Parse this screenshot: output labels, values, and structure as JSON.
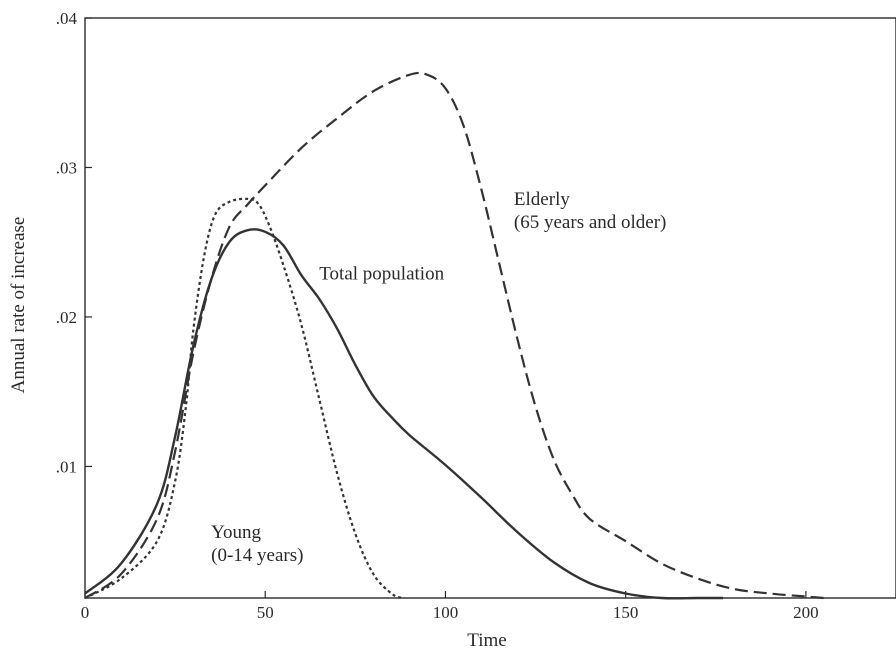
{
  "chart_data": {
    "type": "line",
    "title": "",
    "xlabel": "Time",
    "ylabel": "Annual rate of increase",
    "xlim": [
      0,
      225
    ],
    "ylim": [
      0.0012,
      0.04
    ],
    "x_ticks": [
      {
        "value": 0,
        "label": "0"
      },
      {
        "value": 50,
        "label": "50"
      },
      {
        "value": 100,
        "label": "100"
      },
      {
        "value": 150,
        "label": "150"
      },
      {
        "value": 200,
        "label": "200"
      }
    ],
    "y_ticks": [
      {
        "value": 0.01,
        "label": ".01"
      },
      {
        "value": 0.02,
        "label": ".02"
      },
      {
        "value": 0.03,
        "label": ".03"
      },
      {
        "value": 0.04,
        "label": ".04"
      }
    ],
    "grid": false,
    "legend": "none",
    "series": [
      {
        "key": "total",
        "line_style": "solid",
        "color": "#333333",
        "points": [
          [
            0,
            0.0015
          ],
          [
            10,
            0.0035
          ],
          [
            20,
            0.0075
          ],
          [
            25,
            0.012
          ],
          [
            30,
            0.018
          ],
          [
            35,
            0.0225
          ],
          [
            40,
            0.025
          ],
          [
            45,
            0.0258
          ],
          [
            50,
            0.0257
          ],
          [
            55,
            0.0248
          ],
          [
            60,
            0.0228
          ],
          [
            65,
            0.0212
          ],
          [
            70,
            0.0192
          ],
          [
            75,
            0.0168
          ],
          [
            80,
            0.0147
          ],
          [
            85,
            0.0133
          ],
          [
            90,
            0.0121
          ],
          [
            100,
            0.0101
          ],
          [
            110,
            0.0079
          ],
          [
            120,
            0.0056
          ],
          [
            130,
            0.0036
          ],
          [
            140,
            0.0022
          ],
          [
            150,
            0.0015
          ],
          [
            160,
            0.0012
          ],
          [
            170,
            0.0012
          ],
          [
            177,
            0.0012
          ]
        ]
      },
      {
        "key": "young",
        "line_style": "dotted",
        "color": "#333333",
        "points": [
          [
            0,
            0.0012
          ],
          [
            10,
            0.0025
          ],
          [
            20,
            0.005
          ],
          [
            25,
            0.009
          ],
          [
            28,
            0.014
          ],
          [
            30,
            0.019
          ],
          [
            33,
            0.024
          ],
          [
            36,
            0.0268
          ],
          [
            40,
            0.0277
          ],
          [
            45,
            0.0279
          ],
          [
            48,
            0.0276
          ],
          [
            51,
            0.0262
          ],
          [
            55,
            0.0235
          ],
          [
            60,
            0.0195
          ],
          [
            65,
            0.0145
          ],
          [
            70,
            0.0095
          ],
          [
            75,
            0.0055
          ],
          [
            80,
            0.0028
          ],
          [
            85,
            0.0015
          ],
          [
            88,
            0.0012
          ]
        ]
      },
      {
        "key": "elderly",
        "line_style": "dashed",
        "color": "#333333",
        "points": [
          [
            0,
            0.0012
          ],
          [
            10,
            0.0028
          ],
          [
            20,
            0.0065
          ],
          [
            25,
            0.011
          ],
          [
            30,
            0.0175
          ],
          [
            35,
            0.0225
          ],
          [
            40,
            0.026
          ],
          [
            45,
            0.0275
          ],
          [
            50,
            0.0288
          ],
          [
            60,
            0.0313
          ],
          [
            70,
            0.0333
          ],
          [
            80,
            0.0351
          ],
          [
            90,
            0.0362
          ],
          [
            95,
            0.0362
          ],
          [
            100,
            0.0353
          ],
          [
            105,
            0.0328
          ],
          [
            110,
            0.0285
          ],
          [
            115,
            0.0235
          ],
          [
            120,
            0.0185
          ],
          [
            125,
            0.014
          ],
          [
            130,
            0.0105
          ],
          [
            135,
            0.0082
          ],
          [
            140,
            0.0065
          ],
          [
            150,
            0.005
          ],
          [
            160,
            0.0035
          ],
          [
            170,
            0.0025
          ],
          [
            180,
            0.0018
          ],
          [
            190,
            0.0015
          ],
          [
            200,
            0.0013
          ],
          [
            205,
            0.0012
          ]
        ]
      }
    ],
    "annotations": [
      {
        "key": "total",
        "lines": [
          "Total population"
        ],
        "x": 65,
        "y": 0.0225
      },
      {
        "key": "young",
        "lines": [
          "Young",
          "(0-14 years)"
        ],
        "x": 35,
        "y": 0.0052
      },
      {
        "key": "elderly",
        "lines": [
          "Elderly",
          "(65 years and older)"
        ],
        "x": 119,
        "y": 0.0275
      }
    ]
  }
}
